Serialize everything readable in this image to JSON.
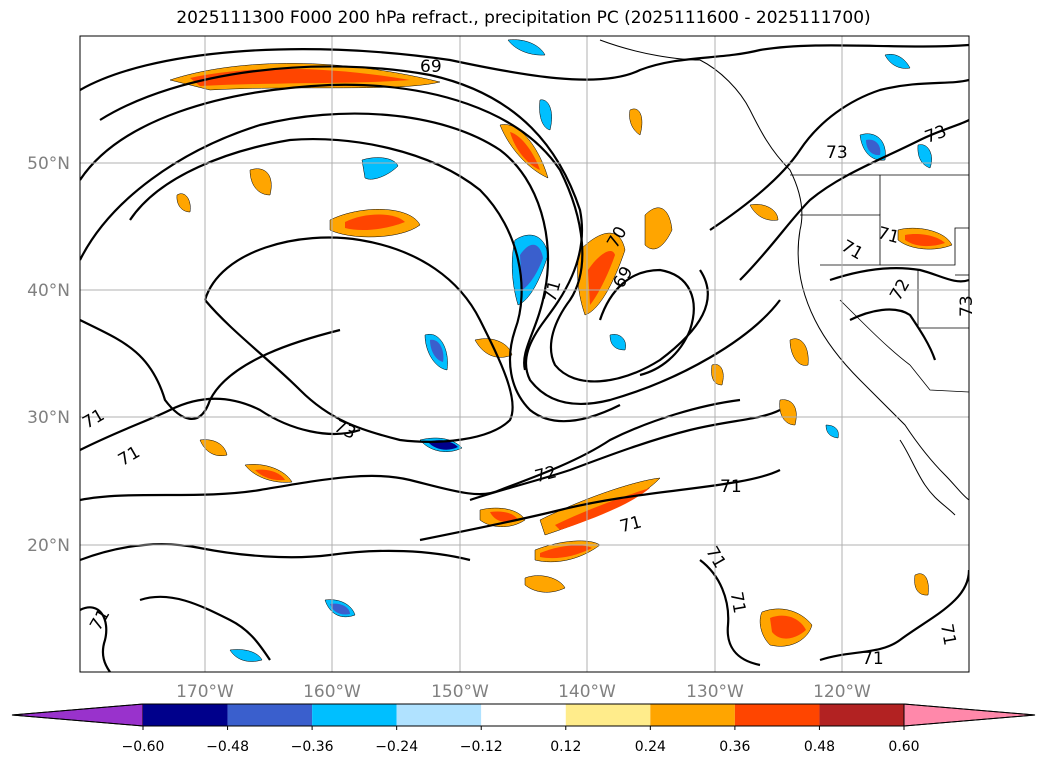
{
  "title": "2025111300 F000 200 hPa refract., precipitation PC (2025111600 - 2025111700)",
  "map": {
    "lat_labels": [
      "50°N",
      "40°N",
      "30°N",
      "20°N"
    ],
    "lon_labels": [
      "170°W",
      "160°W",
      "150°W",
      "140°W",
      "130°W",
      "120°W"
    ],
    "contour_labels": [
      "69",
      "70",
      "69",
      "71",
      "71",
      "73",
      "71",
      "72",
      "71",
      "71",
      "71",
      "71",
      "71",
      "71",
      "73",
      "73",
      "71",
      "72",
      "73",
      "71",
      "71"
    ],
    "tick_label_color": "#808080",
    "grid": true
  },
  "colorbar": {
    "tick_labels": [
      "−0.60",
      "−0.48",
      "−0.36",
      "−0.24",
      "−0.12",
      "0.12",
      "0.24",
      "0.36",
      "0.48",
      "0.60"
    ],
    "colors": [
      "#9932CC",
      "#00008B",
      "#3A5FCD",
      "#00BFFF",
      "#B0E2FF",
      "#FFFFFF",
      "#FFEC8B",
      "#FFA500",
      "#FF4500",
      "#B22222",
      "#FF88AA"
    ]
  }
}
